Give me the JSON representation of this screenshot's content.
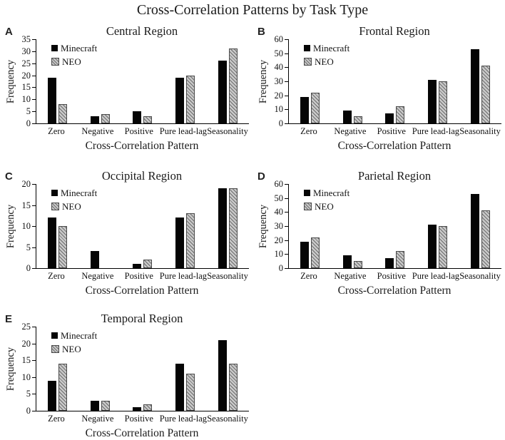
{
  "figure": {
    "title": "Cross-Correlation Patterns by Task Type",
    "colors": {
      "minecraft": "#050505",
      "neo_fill": "#c9c9c9",
      "axis": "#000000"
    }
  },
  "chart_data": [
    {
      "type": "bar",
      "panel": "A",
      "title": "Central Region",
      "xlabel": "Cross-Correlation  Pattern",
      "ylabel": "Frequency",
      "categories": [
        "Zero",
        "Negative",
        "Positive",
        "Pure lead-lag",
        "Seasonality"
      ],
      "series": [
        {
          "name": "Minecraft",
          "values": [
            19,
            3,
            5,
            19,
            26
          ]
        },
        {
          "name": "NEO",
          "values": [
            8,
            4,
            3,
            20,
            31
          ]
        }
      ],
      "ylim": [
        0,
        35
      ],
      "ytick_step": 5,
      "grid": false,
      "legend_position": "top-left-inside"
    },
    {
      "type": "bar",
      "panel": "B",
      "title": "Frontal Region",
      "xlabel": "Cross-Correlation  Pattern",
      "ylabel": "Frequency",
      "categories": [
        "Zero",
        "Negative",
        "Positive",
        "Pure lead-lag",
        "Seasonality"
      ],
      "series": [
        {
          "name": "Minecraft",
          "values": [
            19,
            9,
            7,
            31,
            53
          ]
        },
        {
          "name": "NEO",
          "values": [
            22,
            5,
            12,
            30,
            41
          ]
        }
      ],
      "ylim": [
        0,
        60
      ],
      "ytick_step": 10,
      "grid": false,
      "legend_position": "top-left-inside"
    },
    {
      "type": "bar",
      "panel": "C",
      "title": "Occipital Region",
      "xlabel": "Cross-Correlation  Pattern",
      "ylabel": "Frequency",
      "categories": [
        "Zero",
        "Negative",
        "Positive",
        "Pure lead-lag",
        "Seasonality"
      ],
      "series": [
        {
          "name": "Minecraft",
          "values": [
            12,
            4,
            1,
            12,
            19
          ]
        },
        {
          "name": "NEO",
          "values": [
            10,
            0,
            2,
            13,
            19
          ]
        }
      ],
      "ylim": [
        0,
        20
      ],
      "ytick_step": 5,
      "grid": false,
      "legend_position": "top-left-inside"
    },
    {
      "type": "bar",
      "panel": "D",
      "title": "Parietal Region",
      "xlabel": "Cross-Correlation  Pattern",
      "ylabel": "Frequency",
      "categories": [
        "Zero",
        "Negative",
        "Positive",
        "Pure lead-lag",
        "Seasonality"
      ],
      "series": [
        {
          "name": "Minecraft",
          "values": [
            19,
            9,
            7,
            31,
            53
          ]
        },
        {
          "name": "NEO",
          "values": [
            22,
            5,
            12,
            30,
            41
          ]
        }
      ],
      "ylim": [
        0,
        60
      ],
      "ytick_step": 10,
      "grid": false,
      "legend_position": "top-left-inside"
    },
    {
      "type": "bar",
      "panel": "E",
      "title": "Temporal Region",
      "xlabel": "Cross-Correlation  Pattern",
      "ylabel": "Frequency",
      "categories": [
        "Zero",
        "Negative",
        "Positive",
        "Pure lead-lag",
        "Seasonality"
      ],
      "series": [
        {
          "name": "Minecraft",
          "values": [
            9,
            3,
            1,
            14,
            21
          ]
        },
        {
          "name": "NEO",
          "values": [
            14,
            3,
            2,
            11,
            14
          ]
        }
      ],
      "ylim": [
        0,
        25
      ],
      "ytick_step": 5,
      "grid": false,
      "legend_position": "top-left-inside"
    }
  ]
}
